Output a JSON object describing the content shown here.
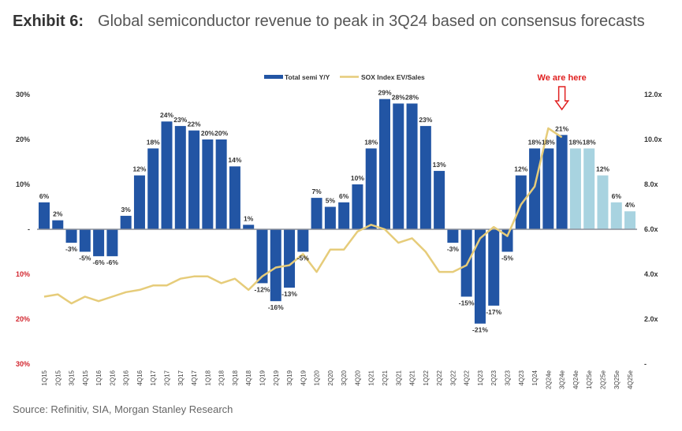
{
  "header": {
    "exhibit": "Exhibit 6:",
    "title": "Global semiconductor revenue to peak in 3Q24 based on consensus forecasts"
  },
  "source": "Source: Refinitiv, SIA, Morgan Stanley Research",
  "chart_data": {
    "type": "bar",
    "title": "Global semiconductor revenue to peak in 3Q24 based on consensus forecasts",
    "categories": [
      "1Q15",
      "2Q15",
      "3Q15",
      "4Q15",
      "1Q16",
      "2Q16",
      "3Q16",
      "4Q16",
      "1Q17",
      "2Q17",
      "3Q17",
      "4Q17",
      "1Q18",
      "2Q18",
      "3Q18",
      "4Q18",
      "1Q19",
      "2Q19",
      "3Q19",
      "4Q19",
      "1Q20",
      "2Q20",
      "3Q20",
      "4Q20",
      "1Q21",
      "2Q21",
      "3Q21",
      "4Q21",
      "1Q22",
      "2Q22",
      "3Q22",
      "4Q22",
      "1Q23",
      "2Q23",
      "3Q23",
      "4Q23",
      "1Q24",
      "2Q24e",
      "3Q24e",
      "4Q24e",
      "1Q25e",
      "2Q25e",
      "3Q25e",
      "4Q25e"
    ],
    "series": [
      {
        "name": "Total semi Y/Y",
        "axis": "left",
        "kind": "bar",
        "color": "#2255a4",
        "forecast_color": "#a8d3e0",
        "forecast_from_index": 39,
        "values": [
          6,
          2,
          -3,
          -5,
          -6,
          -6,
          3,
          12,
          18,
          24,
          23,
          22,
          20,
          20,
          14,
          1,
          -12,
          -16,
          -13,
          -5,
          7,
          5,
          6,
          10,
          18,
          29,
          28,
          28,
          23,
          13,
          -3,
          -15,
          -21,
          -17,
          -5,
          12,
          18,
          18,
          21,
          18,
          18,
          12,
          6,
          4
        ],
        "labels": [
          "6%",
          "2%",
          "-3%",
          "-5%",
          "-6%",
          "-6%",
          "3%",
          "12%",
          "18%",
          "24%",
          "23%",
          "22%",
          "20%",
          "20%",
          "14%",
          "1%",
          "-12%",
          "-16%",
          "-13%",
          "-5%",
          "7%",
          "5%",
          "6%",
          "10%",
          "18%",
          "29%",
          "28%",
          "28%",
          "23%",
          "13%",
          "-3%",
          "-15%",
          "-21%",
          "-17%",
          "-5%",
          "12%",
          "18%",
          "18%",
          "21%",
          "18%",
          "18%",
          "12%",
          "6%",
          "4%"
        ]
      },
      {
        "name": "SOX Index EV/Sales",
        "axis": "right",
        "kind": "line",
        "color": "#e6cc7a",
        "values": [
          3.0,
          3.1,
          2.7,
          3.0,
          2.8,
          3.0,
          3.2,
          3.3,
          3.5,
          3.5,
          3.8,
          3.9,
          3.9,
          3.6,
          3.8,
          3.3,
          3.9,
          4.3,
          4.4,
          4.9,
          4.1,
          5.1,
          5.1,
          5.9,
          6.2,
          6.0,
          5.4,
          5.6,
          5.0,
          4.1,
          4.1,
          4.4,
          5.6,
          6.1,
          5.7,
          7.1,
          7.9,
          10.5,
          10.1
        ]
      }
    ],
    "y_left": {
      "range": [
        -30,
        30
      ],
      "ticks": [
        30,
        20,
        10,
        0,
        -10,
        -20,
        -30
      ],
      "tick_labels": [
        "30%",
        "20%",
        "10%",
        "-",
        "10%",
        "20%",
        "30%"
      ],
      "negative_tick_color": "#d2262f"
    },
    "y_right": {
      "range": [
        0,
        12
      ],
      "ticks": [
        12,
        10,
        8,
        6,
        4,
        2,
        0
      ],
      "tick_labels": [
        "12.0x",
        "10.0x",
        "8.0x",
        "6.0x",
        "4.0x",
        "2.0x",
        "-"
      ]
    },
    "xlabel": "",
    "ylabel": "",
    "grid": false,
    "legend": {
      "position": "top-center",
      "entries": [
        "Total semi Y/Y",
        "SOX Index EV/Sales"
      ]
    },
    "annotation": {
      "text": "We are here",
      "target_category": "3Q24e",
      "color": "#e02020"
    }
  }
}
